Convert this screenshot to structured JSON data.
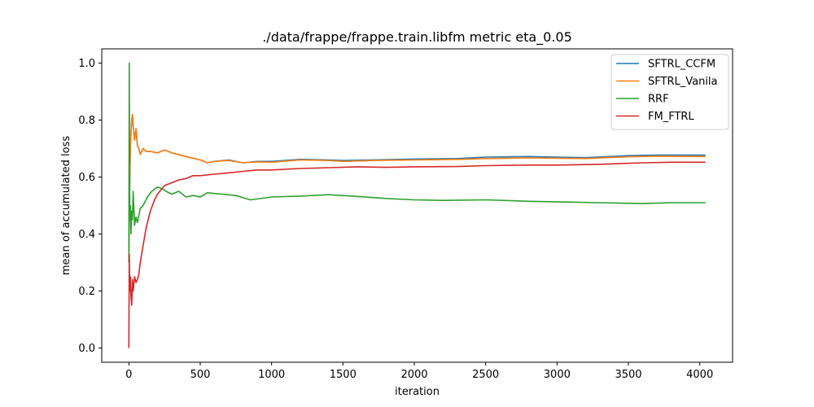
{
  "chart_data": {
    "type": "line",
    "title": "./data/frappe/frappe.train.libfm metric eta_0.05",
    "xlabel": "iteration",
    "ylabel": "mean of accumulated loss",
    "xlim": [
      -190,
      4230
    ],
    "ylim": [
      -0.05,
      1.05
    ],
    "xticks": [
      0,
      500,
      1000,
      1500,
      2000,
      2500,
      3000,
      3500,
      4000
    ],
    "yticks": [
      0.0,
      0.2,
      0.4,
      0.6,
      0.8,
      1.0
    ],
    "ytick_labels": [
      "0.0",
      "0.2",
      "0.4",
      "0.6",
      "0.8",
      "1.0"
    ],
    "grid": false,
    "legend_position": "top-right",
    "series": [
      {
        "name": "SFTRL_CCFM",
        "color": "#1f77b4",
        "points": [
          [
            0,
            0.34
          ],
          [
            5,
            0.55
          ],
          [
            10,
            0.7
          ],
          [
            15,
            0.75
          ],
          [
            20,
            0.8
          ],
          [
            25,
            0.82
          ],
          [
            30,
            0.78
          ],
          [
            40,
            0.73
          ],
          [
            50,
            0.77
          ],
          [
            60,
            0.71
          ],
          [
            70,
            0.7
          ],
          [
            80,
            0.68
          ],
          [
            100,
            0.7
          ],
          [
            120,
            0.69
          ],
          [
            150,
            0.69
          ],
          [
            200,
            0.685
          ],
          [
            250,
            0.695
          ],
          [
            300,
            0.685
          ],
          [
            400,
            0.672
          ],
          [
            500,
            0.66
          ],
          [
            550,
            0.65
          ],
          [
            600,
            0.655
          ],
          [
            700,
            0.66
          ],
          [
            800,
            0.65
          ],
          [
            900,
            0.655
          ],
          [
            1000,
            0.655
          ],
          [
            1200,
            0.662
          ],
          [
            1400,
            0.66
          ],
          [
            1500,
            0.658
          ],
          [
            1700,
            0.66
          ],
          [
            2000,
            0.663
          ],
          [
            2300,
            0.665
          ],
          [
            2500,
            0.67
          ],
          [
            2800,
            0.672
          ],
          [
            3000,
            0.67
          ],
          [
            3200,
            0.668
          ],
          [
            3500,
            0.675
          ],
          [
            3700,
            0.677
          ],
          [
            4000,
            0.677
          ],
          [
            4040,
            0.677
          ]
        ]
      },
      {
        "name": "SFTRL_Vanila",
        "color": "#ff7f0e",
        "points": [
          [
            0,
            0.34
          ],
          [
            5,
            0.55
          ],
          [
            10,
            0.7
          ],
          [
            15,
            0.75
          ],
          [
            20,
            0.8
          ],
          [
            25,
            0.82
          ],
          [
            30,
            0.78
          ],
          [
            40,
            0.73
          ],
          [
            50,
            0.77
          ],
          [
            60,
            0.71
          ],
          [
            70,
            0.7
          ],
          [
            80,
            0.68
          ],
          [
            100,
            0.7
          ],
          [
            120,
            0.69
          ],
          [
            150,
            0.69
          ],
          [
            200,
            0.685
          ],
          [
            250,
            0.695
          ],
          [
            300,
            0.685
          ],
          [
            400,
            0.672
          ],
          [
            500,
            0.66
          ],
          [
            550,
            0.65
          ],
          [
            600,
            0.655
          ],
          [
            700,
            0.658
          ],
          [
            800,
            0.65
          ],
          [
            900,
            0.653
          ],
          [
            1000,
            0.652
          ],
          [
            1200,
            0.66
          ],
          [
            1400,
            0.658
          ],
          [
            1500,
            0.655
          ],
          [
            1700,
            0.658
          ],
          [
            2000,
            0.66
          ],
          [
            2300,
            0.662
          ],
          [
            2500,
            0.665
          ],
          [
            2800,
            0.667
          ],
          [
            3000,
            0.666
          ],
          [
            3200,
            0.665
          ],
          [
            3500,
            0.671
          ],
          [
            3700,
            0.673
          ],
          [
            4000,
            0.672
          ],
          [
            4040,
            0.672
          ]
        ]
      },
      {
        "name": "RRF",
        "color": "#2ca02c",
        "points": [
          [
            0,
            0.3
          ],
          [
            3,
            1.0
          ],
          [
            6,
            0.45
          ],
          [
            10,
            0.5
          ],
          [
            15,
            0.4
          ],
          [
            20,
            0.48
          ],
          [
            25,
            0.45
          ],
          [
            30,
            0.55
          ],
          [
            40,
            0.43
          ],
          [
            50,
            0.46
          ],
          [
            60,
            0.44
          ],
          [
            80,
            0.49
          ],
          [
            100,
            0.5
          ],
          [
            130,
            0.53
          ],
          [
            160,
            0.55
          ],
          [
            200,
            0.565
          ],
          [
            230,
            0.56
          ],
          [
            260,
            0.55
          ],
          [
            300,
            0.54
          ],
          [
            350,
            0.55
          ],
          [
            400,
            0.53
          ],
          [
            450,
            0.535
          ],
          [
            500,
            0.53
          ],
          [
            550,
            0.545
          ],
          [
            650,
            0.54
          ],
          [
            750,
            0.535
          ],
          [
            850,
            0.52
          ],
          [
            1000,
            0.53
          ],
          [
            1200,
            0.533
          ],
          [
            1400,
            0.538
          ],
          [
            1600,
            0.532
          ],
          [
            1800,
            0.525
          ],
          [
            2000,
            0.52
          ],
          [
            2200,
            0.518
          ],
          [
            2500,
            0.52
          ],
          [
            2800,
            0.515
          ],
          [
            3000,
            0.513
          ],
          [
            3300,
            0.51
          ],
          [
            3600,
            0.507
          ],
          [
            3800,
            0.51
          ],
          [
            4040,
            0.51
          ]
        ]
      },
      {
        "name": "FM_FTRL",
        "color": "#d62728",
        "points": [
          [
            0,
            0.0
          ],
          [
            3,
            0.33
          ],
          [
            6,
            0.2
          ],
          [
            10,
            0.25
          ],
          [
            15,
            0.18
          ],
          [
            20,
            0.15
          ],
          [
            25,
            0.24
          ],
          [
            30,
            0.2
          ],
          [
            40,
            0.25
          ],
          [
            50,
            0.23
          ],
          [
            60,
            0.24
          ],
          [
            70,
            0.26
          ],
          [
            80,
            0.3
          ],
          [
            100,
            0.36
          ],
          [
            120,
            0.42
          ],
          [
            150,
            0.48
          ],
          [
            180,
            0.52
          ],
          [
            200,
            0.54
          ],
          [
            250,
            0.57
          ],
          [
            300,
            0.58
          ],
          [
            350,
            0.59
          ],
          [
            400,
            0.595
          ],
          [
            450,
            0.605
          ],
          [
            500,
            0.605
          ],
          [
            600,
            0.61
          ],
          [
            700,
            0.615
          ],
          [
            800,
            0.62
          ],
          [
            900,
            0.625
          ],
          [
            1000,
            0.625
          ],
          [
            1200,
            0.63
          ],
          [
            1400,
            0.633
          ],
          [
            1600,
            0.636
          ],
          [
            1800,
            0.634
          ],
          [
            2000,
            0.636
          ],
          [
            2300,
            0.637
          ],
          [
            2500,
            0.64
          ],
          [
            2800,
            0.642
          ],
          [
            3000,
            0.642
          ],
          [
            3300,
            0.645
          ],
          [
            3600,
            0.65
          ],
          [
            3800,
            0.652
          ],
          [
            4040,
            0.652
          ]
        ]
      }
    ]
  }
}
